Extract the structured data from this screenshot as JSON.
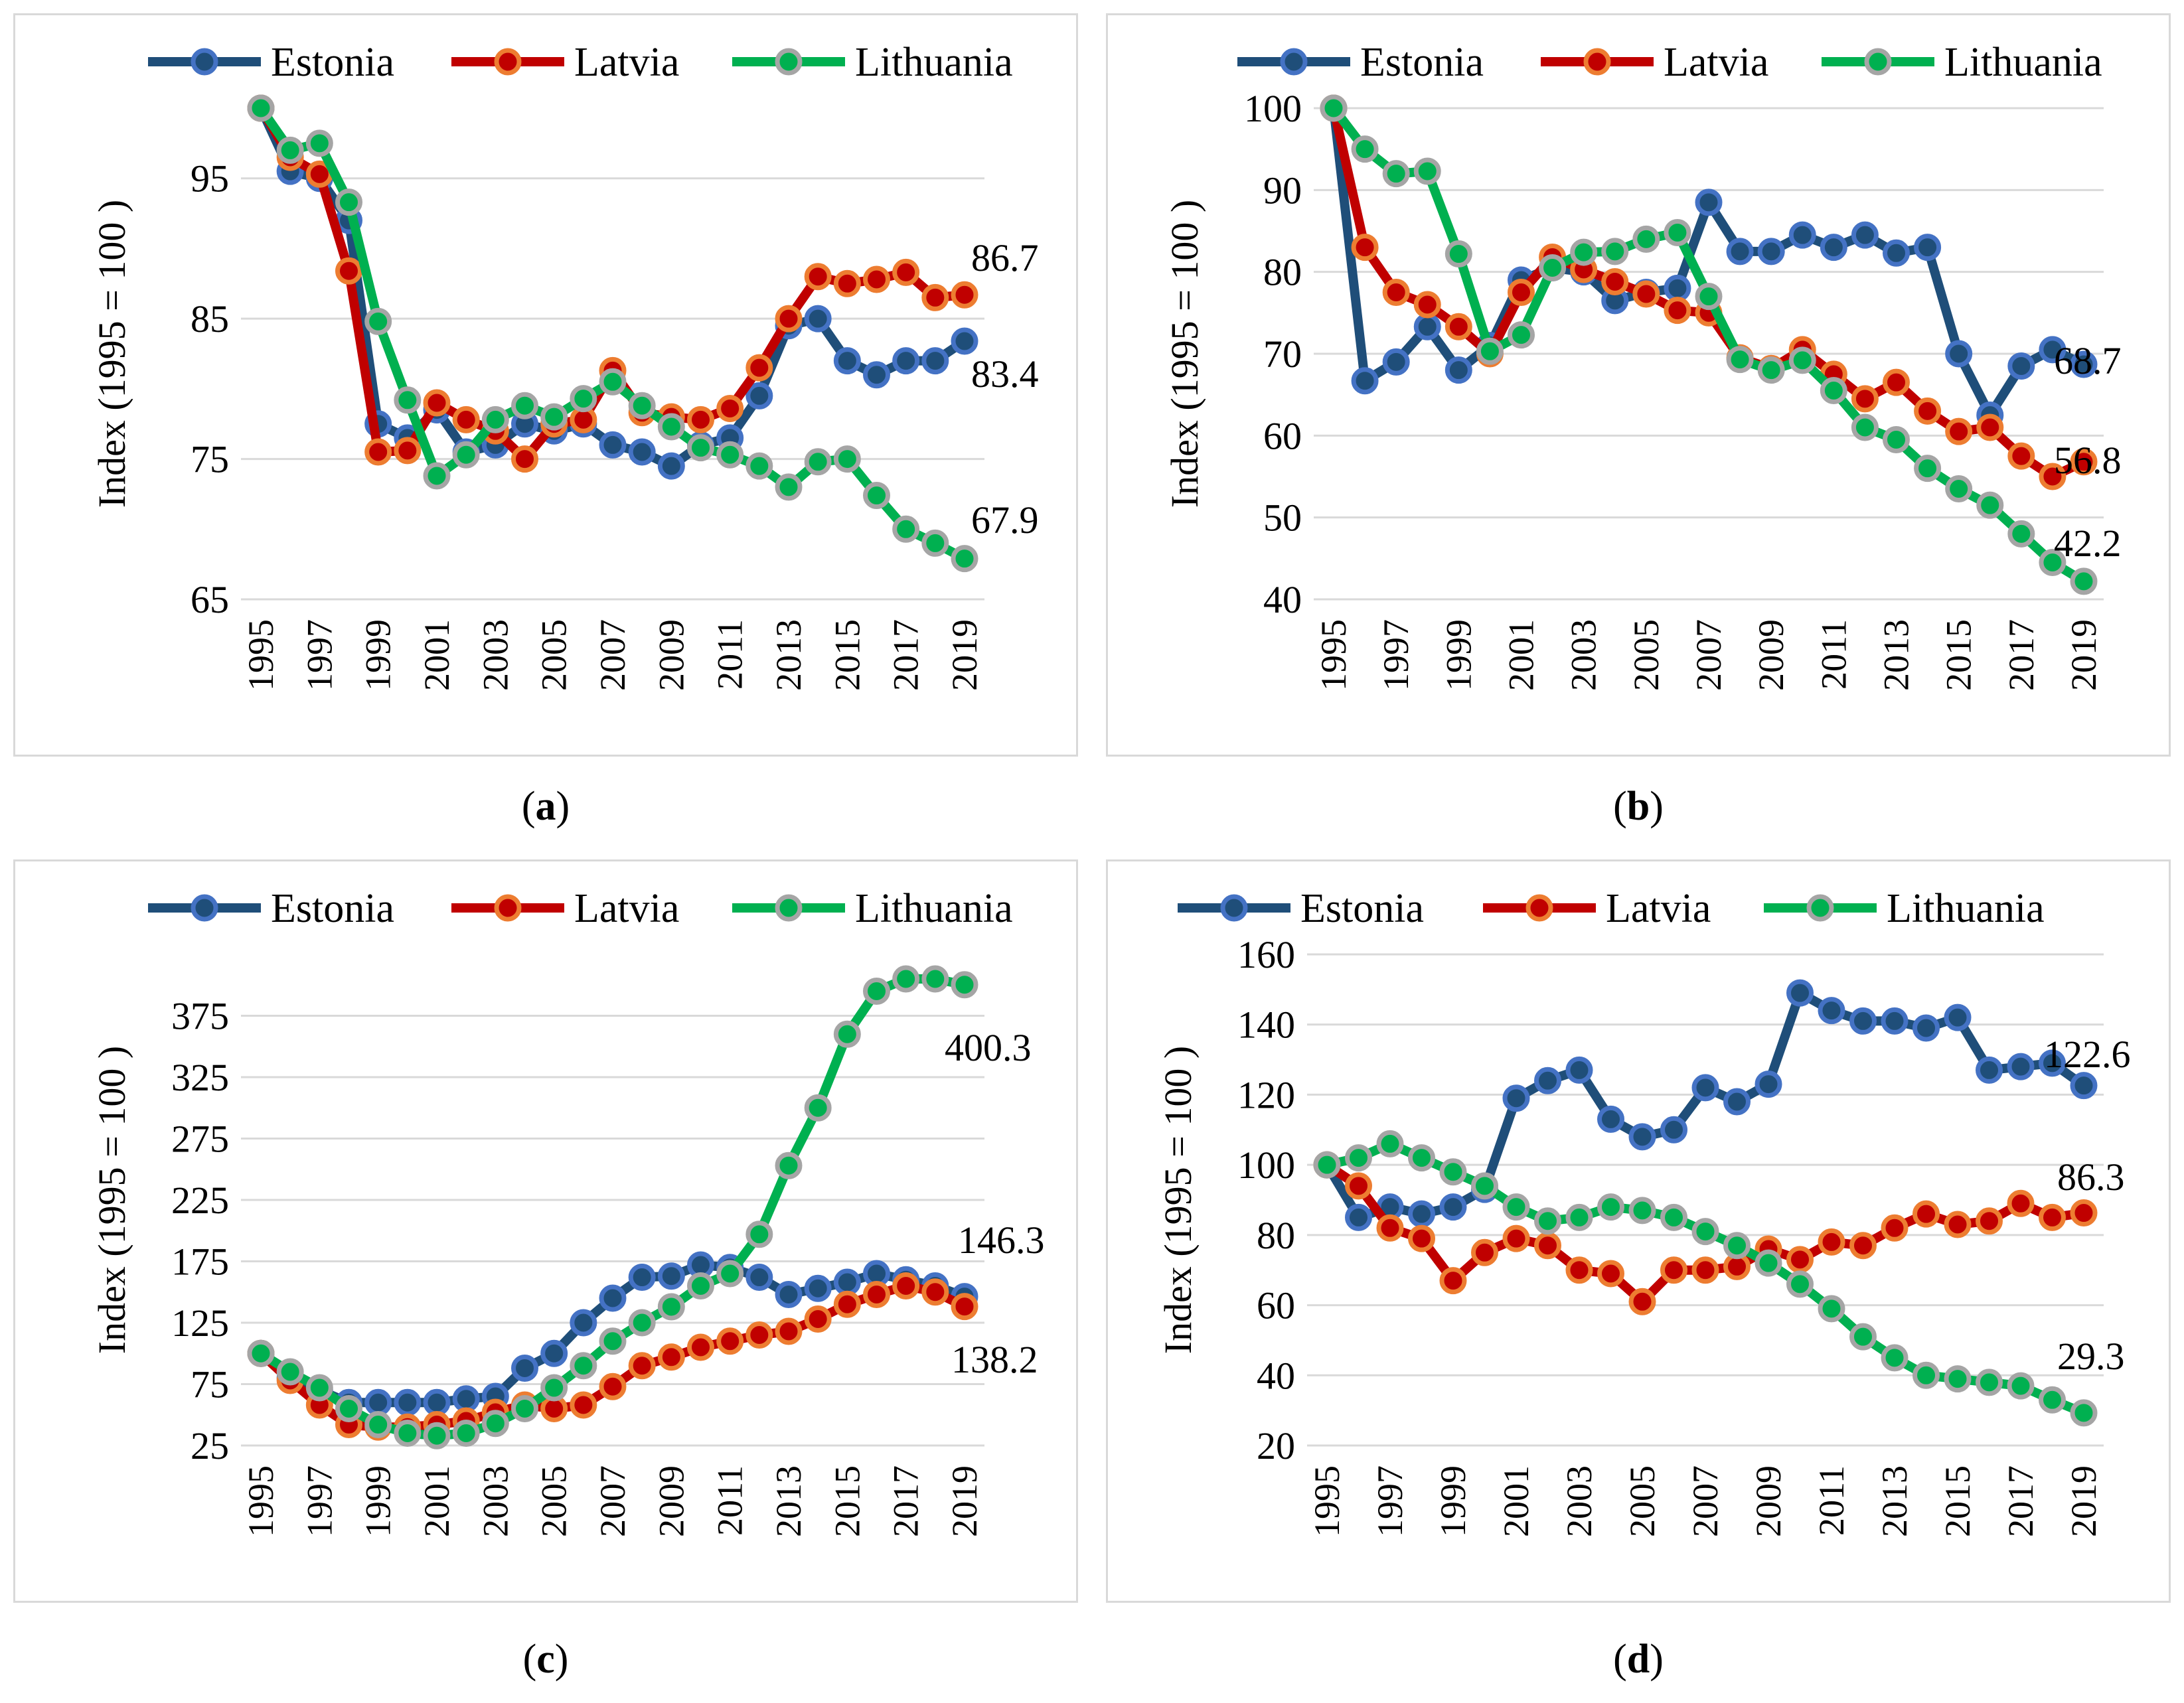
{
  "colors": {
    "estonia_line": "#1f4e79",
    "estonia_marker": "#4472c4",
    "latvia_line": "#c00000",
    "latvia_marker": "#ed7d31",
    "lithuania_line": "#00b050",
    "lithuania_marker": "#a5a5a5",
    "grid": "#d9d9d9"
  },
  "captions": [
    {
      "letter": "a"
    },
    {
      "letter": "b"
    },
    {
      "letter": "c"
    },
    {
      "letter": "d"
    }
  ],
  "chart_data": [
    {
      "type": "line",
      "id": "a",
      "ylabel": "Index (1995 = 100 )",
      "ylim": [
        65,
        100
      ],
      "yticks": [
        65,
        75,
        85,
        95
      ],
      "x": [
        1995,
        1996,
        1997,
        1998,
        1999,
        2000,
        2001,
        2002,
        2003,
        2004,
        2005,
        2006,
        2007,
        2008,
        2009,
        2010,
        2011,
        2012,
        2013,
        2014,
        2015,
        2016,
        2017,
        2018,
        2019
      ],
      "xtick_labels": [
        "1995",
        "1997",
        "1999",
        "2001",
        "2003",
        "2005",
        "2007",
        "2009",
        "2011",
        "2013",
        "2015",
        "2017",
        "2019"
      ],
      "legend": [
        "Estonia",
        "Latvia",
        "Lithuania"
      ],
      "series": [
        {
          "name": "Estonia",
          "values": [
            100,
            95.5,
            95,
            92,
            77.5,
            76.5,
            78.5,
            75.5,
            76,
            77.5,
            77,
            77.5,
            76,
            75.5,
            74.5,
            76,
            76.5,
            79.5,
            84.5,
            85,
            82,
            81,
            82,
            82,
            83.4
          ]
        },
        {
          "name": "Latvia",
          "values": [
            100,
            96.5,
            95.3,
            88.4,
            75.5,
            75.6,
            79,
            77.8,
            77,
            75,
            77.5,
            77.8,
            81.3,
            78.3,
            78,
            77.8,
            78.6,
            81.5,
            85,
            88,
            87.5,
            87.8,
            88.3,
            86.5,
            86.7
          ]
        },
        {
          "name": "Lithuania",
          "values": [
            100,
            97,
            97.5,
            93.3,
            84.8,
            79.2,
            73.8,
            75.3,
            77.8,
            78.8,
            78,
            79.3,
            80.5,
            78.8,
            77.3,
            75.8,
            75.3,
            74.5,
            73,
            74.8,
            75,
            72.4,
            70,
            69,
            67.9
          ]
        }
      ],
      "end_labels": [
        {
          "series": "Latvia",
          "text": "86.7"
        },
        {
          "series": "Estonia",
          "text": "83.4"
        },
        {
          "series": "Lithuania",
          "text": "67.9"
        }
      ]
    },
    {
      "type": "line",
      "id": "b",
      "ylabel": "Index (1995 = 100 )",
      "ylim": [
        40,
        100
      ],
      "yticks": [
        40,
        50,
        60,
        70,
        80,
        90,
        100
      ],
      "x": [
        1995,
        1996,
        1997,
        1998,
        1999,
        2000,
        2001,
        2002,
        2003,
        2004,
        2005,
        2006,
        2007,
        2008,
        2009,
        2010,
        2011,
        2012,
        2013,
        2014,
        2015,
        2016,
        2017,
        2018,
        2019
      ],
      "xtick_labels": [
        "1995",
        "1997",
        "1999",
        "2001",
        "2003",
        "2005",
        "2007",
        "2009",
        "2011",
        "2013",
        "2015",
        "2017",
        "2019"
      ],
      "legend": [
        "Estonia",
        "Latvia",
        "Lithuania"
      ],
      "series": [
        {
          "name": "Estonia",
          "values": [
            100,
            66.7,
            69,
            73.3,
            68,
            71,
            79,
            80.5,
            80,
            76.5,
            77.5,
            78,
            88.5,
            82.5,
            82.5,
            84.5,
            83,
            84.5,
            82.3,
            83,
            70,
            62.5,
            68.5,
            70.5,
            68.7
          ]
        },
        {
          "name": "Latvia",
          "values": [
            100,
            83,
            77.5,
            76,
            73.3,
            70,
            77.5,
            81.8,
            80.3,
            78.8,
            77.3,
            75.3,
            75,
            69.5,
            68.2,
            70.5,
            67.5,
            64.5,
            66.5,
            63,
            60.5,
            61,
            57.5,
            55,
            56.8
          ]
        },
        {
          "name": "Lithuania",
          "values": [
            100,
            95,
            92,
            92.3,
            82.2,
            70.3,
            72.3,
            80.5,
            82.4,
            82.5,
            84,
            84.8,
            77,
            69.3,
            68,
            69.2,
            65.5,
            61,
            59.5,
            56,
            53.5,
            51.5,
            48,
            44.5,
            42.2
          ]
        }
      ],
      "end_labels": [
        {
          "series": "Estonia",
          "text": "68.7"
        },
        {
          "series": "Latvia",
          "text": "56.8"
        },
        {
          "series": "Lithuania",
          "text": "42.2"
        }
      ]
    },
    {
      "type": "line",
      "id": "c",
      "ylabel": "Index (1995 = 100 )",
      "ylim": [
        25,
        425
      ],
      "yticks": [
        25,
        75,
        125,
        175,
        225,
        275,
        325,
        375
      ],
      "x": [
        1995,
        1996,
        1997,
        1998,
        1999,
        2000,
        2001,
        2002,
        2003,
        2004,
        2005,
        2006,
        2007,
        2008,
        2009,
        2010,
        2011,
        2012,
        2013,
        2014,
        2015,
        2016,
        2017,
        2018,
        2019
      ],
      "xtick_labels": [
        "1995",
        "1997",
        "1999",
        "2001",
        "2003",
        "2005",
        "2007",
        "2009",
        "2011",
        "2013",
        "2015",
        "2017",
        "2019"
      ],
      "legend": [
        "Estonia",
        "Latvia",
        "Lithuania"
      ],
      "series": [
        {
          "name": "Estonia",
          "values": [
            100,
            80,
            70,
            60,
            60,
            60,
            60,
            63,
            65,
            88,
            100,
            125,
            145,
            162,
            163,
            172,
            170,
            162,
            148,
            153,
            158,
            165,
            160,
            155,
            146.3
          ]
        },
        {
          "name": "Latvia",
          "values": [
            100,
            78,
            58,
            42,
            40,
            40,
            42,
            45,
            52,
            58,
            55,
            58,
            73,
            90,
            97,
            105,
            110,
            115,
            118,
            128,
            140,
            148,
            155,
            150,
            138.2
          ]
        },
        {
          "name": "Lithuania",
          "values": [
            100,
            85,
            72,
            55,
            42,
            35,
            33,
            35,
            43,
            55,
            72,
            90,
            110,
            125,
            138,
            155,
            165,
            197,
            253,
            300,
            360,
            395,
            405,
            405,
            400.3
          ]
        }
      ],
      "end_labels": [
        {
          "series": "Lithuania",
          "text": "400.3"
        },
        {
          "series": "Estonia",
          "text": "146.3"
        },
        {
          "series": "Latvia",
          "text": "138.2"
        }
      ]
    },
    {
      "type": "line",
      "id": "d",
      "ylabel": "Index (1995 = 100 )",
      "ylim": [
        20,
        160
      ],
      "yticks": [
        20,
        40,
        60,
        80,
        100,
        120,
        140,
        160
      ],
      "x": [
        1995,
        1996,
        1997,
        1998,
        1999,
        2000,
        2001,
        2002,
        2003,
        2004,
        2005,
        2006,
        2007,
        2008,
        2009,
        2010,
        2011,
        2012,
        2013,
        2014,
        2015,
        2016,
        2017,
        2018,
        2019
      ],
      "xtick_labels": [
        "1995",
        "1997",
        "1999",
        "2001",
        "2003",
        "2005",
        "2007",
        "2009",
        "2011",
        "2013",
        "2015",
        "2017",
        "2019"
      ],
      "legend": [
        "Estonia",
        "Latvia",
        "Lithuania"
      ],
      "series": [
        {
          "name": "Estonia",
          "values": [
            100,
            85,
            88,
            86,
            88,
            93,
            119,
            124,
            127,
            113,
            108,
            110,
            122,
            118,
            123,
            149,
            144,
            141,
            141,
            139,
            142,
            127,
            128,
            129,
            122.6
          ]
        },
        {
          "name": "Latvia",
          "values": [
            100,
            94,
            82,
            79,
            67,
            75,
            79,
            77,
            70,
            69,
            61,
            70,
            70,
            71,
            76,
            73,
            78,
            77,
            82,
            86,
            83,
            84,
            89,
            85,
            86.3
          ]
        },
        {
          "name": "Lithuania",
          "values": [
            100,
            102,
            106,
            102,
            98,
            94,
            88,
            84,
            85,
            88,
            87,
            85,
            81,
            77,
            72,
            66,
            59,
            51,
            45,
            40,
            39,
            38,
            37,
            33,
            29.3
          ]
        }
      ],
      "end_labels": [
        {
          "series": "Estonia",
          "text": "122.6"
        },
        {
          "series": "Latvia",
          "text": "86.3"
        },
        {
          "series": "Lithuania",
          "text": "29.3"
        }
      ]
    }
  ]
}
